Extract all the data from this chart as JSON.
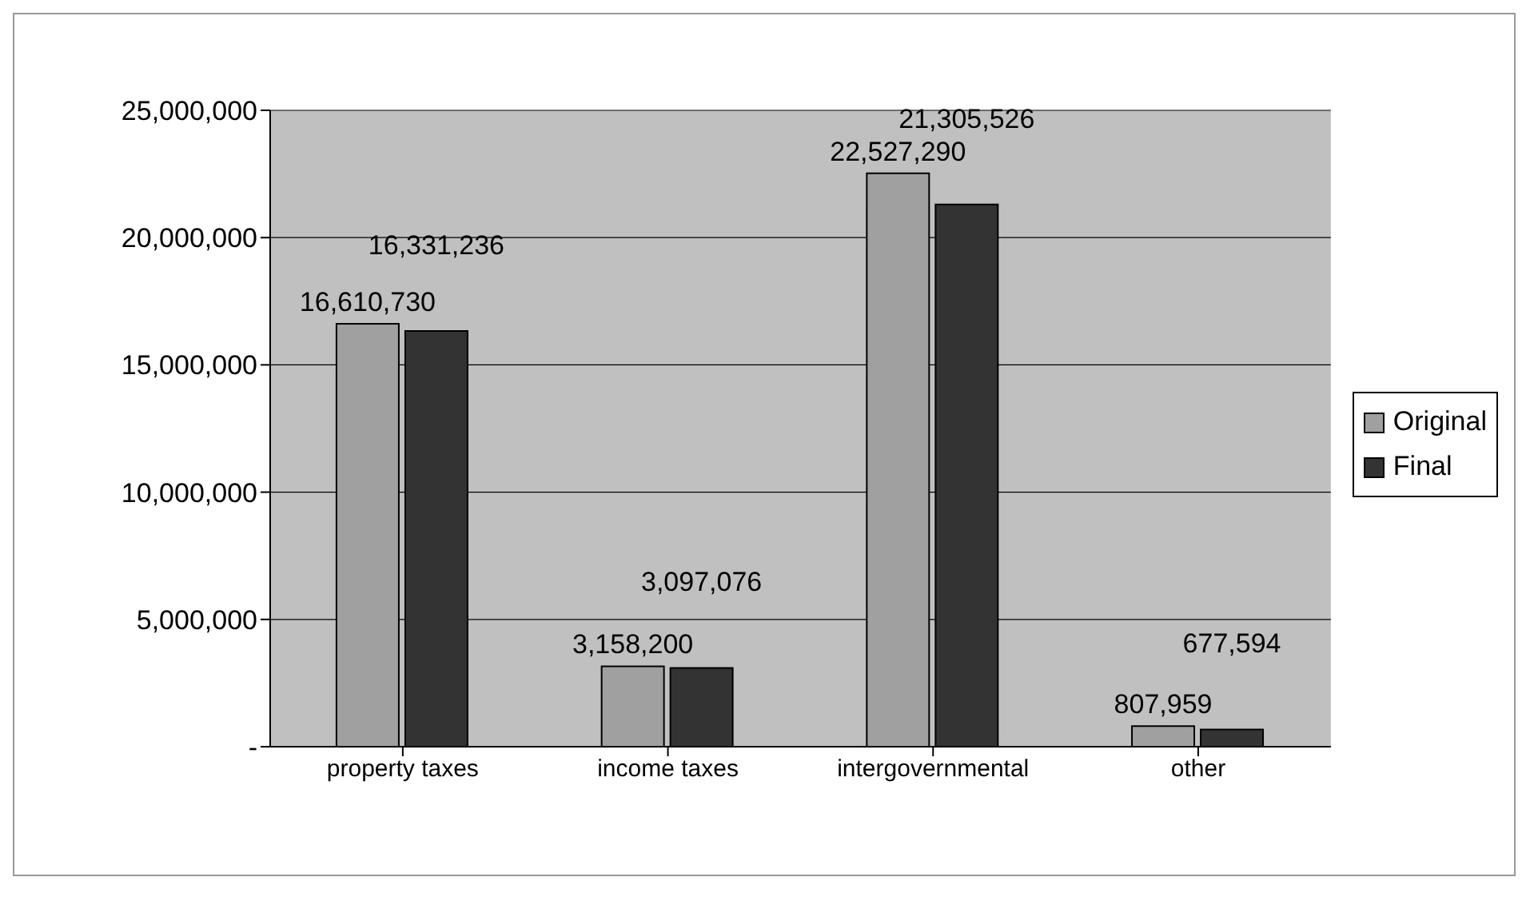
{
  "chart_data": {
    "type": "bar",
    "categories": [
      "property taxes",
      "income taxes",
      "intergovernmental",
      "other"
    ],
    "series": [
      {
        "name": "Original",
        "color": "#a0a0a0",
        "values": [
          16610730,
          3158200,
          22527290,
          807959
        ],
        "value_labels": [
          "16,610,730",
          "3,158,200",
          "22,527,290",
          "807,959"
        ]
      },
      {
        "name": "Final",
        "color": "#333333",
        "values": [
          16331236,
          3097076,
          21305526,
          677594
        ],
        "value_labels": [
          "16,331,236",
          "3,097,076",
          "21,305,526",
          "677,594"
        ]
      }
    ],
    "ylim": [
      0,
      25000000
    ],
    "yticks": [
      {
        "value": 0,
        "label": "-"
      },
      {
        "value": 5000000,
        "label": "5,000,000"
      },
      {
        "value": 10000000,
        "label": "10,000,000"
      },
      {
        "value": 15000000,
        "label": "15,000,000"
      },
      {
        "value": 20000000,
        "label": "20,000,000"
      },
      {
        "value": 25000000,
        "label": "25,000,000"
      }
    ],
    "grid": "y",
    "legend": "right"
  }
}
